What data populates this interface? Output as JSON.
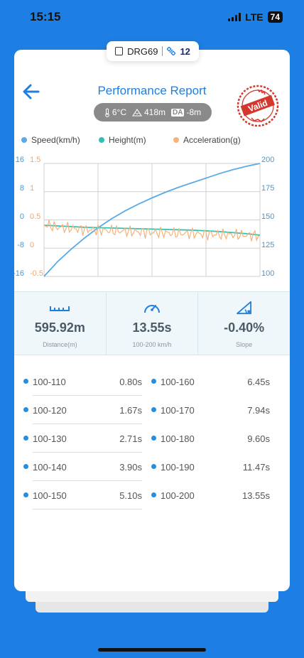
{
  "status_bar": {
    "time": "15:15",
    "network": "LTE",
    "battery": "74"
  },
  "device": {
    "name": "DRG69",
    "satellites": "12"
  },
  "header": {
    "title": "Performance Report",
    "stamp_text": "Valid"
  },
  "conditions": {
    "temperature": "6°C",
    "altitude": "418m",
    "da_label": "DA",
    "density_altitude": "-8m"
  },
  "colors": {
    "speed": "#5aaae6",
    "height": "#2fc1b5",
    "acceleration": "#f5b27a",
    "accent": "#1e7fe0",
    "stamp": "#d2382d"
  },
  "legend": {
    "speed": "Speed(km/h)",
    "height": "Height(m)",
    "acceleration": "Acceleration(g)"
  },
  "chart_data": {
    "type": "line",
    "left_axis_height_ticks": [
      "16",
      "8",
      "0",
      "-8",
      "-16"
    ],
    "left_axis_accel_ticks": [
      "1.5",
      "1",
      "0.5",
      "0",
      "-0.5"
    ],
    "right_axis_speed_ticks": [
      "200",
      "175",
      "150",
      "125",
      "100"
    ],
    "ylim_speed": [
      100,
      200
    ],
    "ylim_height": [
      -16,
      16
    ],
    "ylim_accel": [
      -0.5,
      1.5
    ],
    "grid": true,
    "legend_position": "top",
    "series": [
      {
        "name": "Speed(km/h)",
        "axis": "right",
        "values": [
          100,
          113,
          124,
          134,
          143,
          151,
          158,
          164,
          169.5,
          174.5,
          179,
          183,
          187,
          191,
          194.5,
          197.5,
          200
        ]
      },
      {
        "name": "Height(m)",
        "axis": "left",
        "values": [
          -1.5,
          -1.7,
          -1.9,
          -2.1,
          -2.2,
          -2.3,
          -2.4,
          -2.5,
          -2.6,
          -2.7,
          -2.8,
          -2.9,
          -3.1,
          -3.3,
          -3.6,
          -3.9,
          -4.3
        ]
      },
      {
        "name": "Acceleration(g)",
        "axis": "left",
        "values": [
          0.42,
          0.37,
          0.35,
          0.33,
          0.32,
          0.31,
          0.3,
          0.29,
          0.28,
          0.27,
          0.26,
          0.26,
          0.25,
          0.24,
          0.24,
          0.23,
          0.22
        ]
      }
    ]
  },
  "stats": [
    {
      "value": "595.92m",
      "label": "Distance(m)",
      "icon": "ruler-icon"
    },
    {
      "value": "13.55s",
      "label": "100-200 km/h",
      "icon": "speedometer-icon"
    },
    {
      "value": "-0.40%",
      "label": "Slope",
      "icon": "slope-icon"
    }
  ],
  "splits": [
    {
      "label": "100-110",
      "time": "0.80s"
    },
    {
      "label": "100-120",
      "time": "1.67s"
    },
    {
      "label": "100-130",
      "time": "2.71s"
    },
    {
      "label": "100-140",
      "time": "3.90s"
    },
    {
      "label": "100-150",
      "time": "5.10s"
    },
    {
      "label": "100-160",
      "time": "6.45s"
    },
    {
      "label": "100-170",
      "time": "7.94s"
    },
    {
      "label": "100-180",
      "time": "9.60s"
    },
    {
      "label": "100-190",
      "time": "11.47s"
    },
    {
      "label": "100-200",
      "time": "13.55s"
    }
  ]
}
